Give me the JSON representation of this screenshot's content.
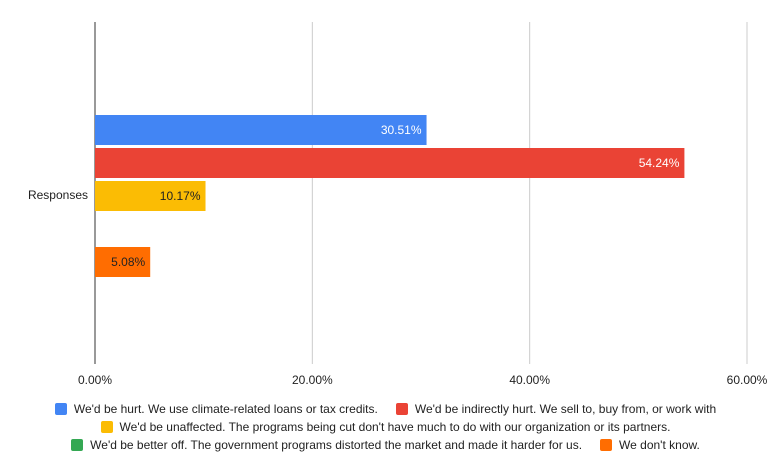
{
  "chart_data": {
    "type": "bar",
    "orientation": "horizontal",
    "categories": [
      "Responses"
    ],
    "xlim": [
      0,
      60
    ],
    "x_ticks": [
      "0.00%",
      "20.00%",
      "40.00%",
      "60.00%"
    ],
    "grid": true,
    "legend_position": "bottom",
    "series": [
      {
        "name": "We'd be hurt. We use climate-related loans or tax credits.",
        "value": 30.51,
        "label": "30.51%",
        "color": "#4285f4",
        "label_color": "#ffffff"
      },
      {
        "name": "We'd be indirectly hurt. We sell to, buy from, or work with",
        "value": 54.24,
        "label": "54.24%",
        "color": "#ea4335",
        "label_color": "#ffffff"
      },
      {
        "name": "We'd be unaffected. The programs being cut don't have much to do with our organization or its partners.",
        "value": 10.17,
        "label": "10.17%",
        "color": "#fbbc04",
        "label_color": "#222222"
      },
      {
        "name": "We'd be better off. The government programs distorted the market and made it harder for us.",
        "value": 0,
        "label": "",
        "color": "#34a853",
        "label_color": "#222222"
      },
      {
        "name": "We don't know.",
        "value": 5.08,
        "label": "5.08%",
        "color": "#ff6d01",
        "label_color": "#222222"
      }
    ]
  }
}
